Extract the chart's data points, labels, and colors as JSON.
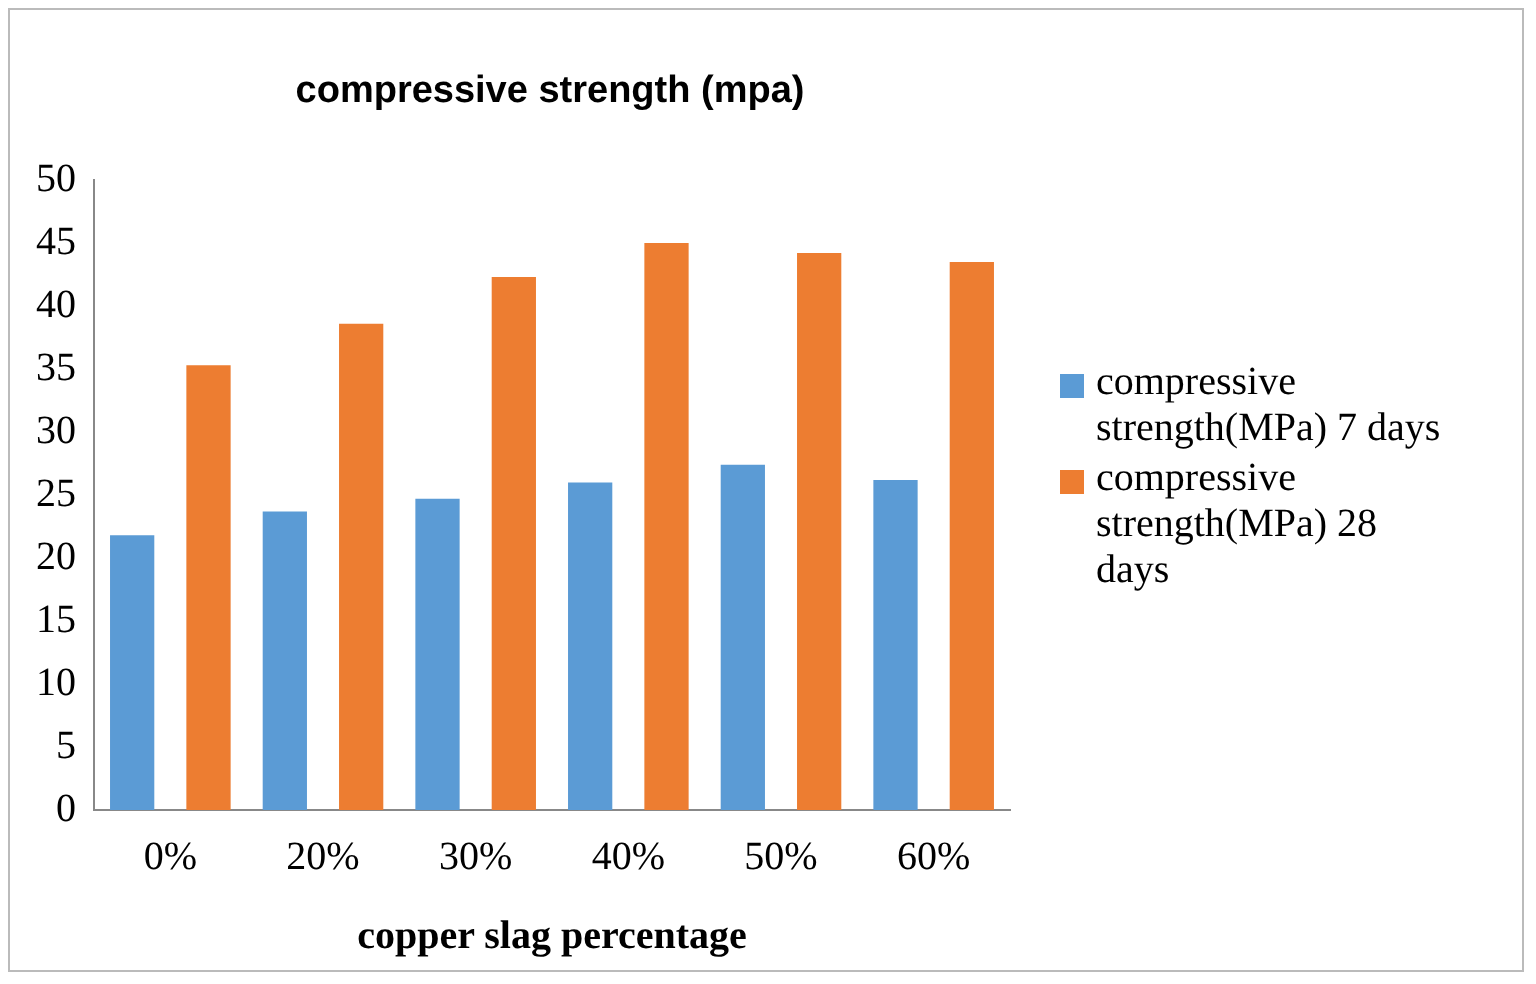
{
  "chart_data": {
    "type": "bar",
    "title": "compressive strength (mpa)",
    "xlabel": "copper slag percentage",
    "categories": [
      "0%",
      "20%",
      "30%",
      "40%",
      "50%",
      "60%"
    ],
    "series": [
      {
        "name": "compressive strength(MPa) 7 days",
        "color": "#5b9bd5",
        "values": [
          21.8,
          23.7,
          24.7,
          26.0,
          27.4,
          26.2
        ]
      },
      {
        "name": "compressive strength(MPa) 28 days",
        "color": "#ed7d31",
        "values": [
          35.3,
          38.6,
          42.3,
          45.0,
          44.2,
          43.5
        ]
      }
    ],
    "ylim": [
      0,
      50
    ],
    "yticks": [
      0,
      5,
      10,
      15,
      20,
      25,
      30,
      35,
      40,
      45,
      50
    ],
    "grid": false,
    "legend": "right"
  }
}
